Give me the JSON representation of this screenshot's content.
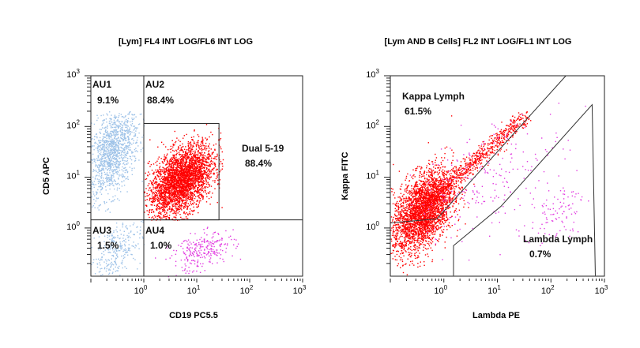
{
  "chart_data": [
    {
      "type": "scatter",
      "title": "[Lym] FL4 INT LOG/FL6 INT LOG",
      "xlabel": "CD19 PC5.5",
      "ylabel": "CD5 APC",
      "xscale": "log",
      "yscale": "log",
      "xlim_log10": [
        -1,
        3
      ],
      "ylim_log10": [
        -0.95,
        3
      ],
      "x_tick_labels": [
        {
          "base": "10",
          "exp": "0"
        },
        {
          "base": "10",
          "exp": "1"
        },
        {
          "base": "10",
          "exp": "2"
        },
        {
          "base": "10",
          "exp": "3"
        }
      ],
      "y_tick_labels": [
        {
          "base": "10",
          "exp": "0"
        },
        {
          "base": "10",
          "exp": "1"
        },
        {
          "base": "10",
          "exp": "2"
        },
        {
          "base": "10",
          "exp": "3"
        }
      ],
      "quadrant_split_log10": {
        "x": 0,
        "y": 0.16
      },
      "regions": [
        {
          "name": "AU1",
          "value": "9.1%"
        },
        {
          "name": "AU2",
          "value": "88.4%"
        },
        {
          "name": "AU3",
          "value": "1.5%"
        },
        {
          "name": "AU4",
          "value": "1.0%"
        },
        {
          "name": "Dual 5-19",
          "value": "88.4%",
          "gate_log10": {
            "x": [
              0,
              1.42
            ],
            "y": [
              0.16,
              2.06
            ]
          }
        }
      ],
      "populations": [
        {
          "color": "#9fc3e8",
          "center_log10": [
            -0.6,
            1.5
          ],
          "spread_log10": [
            0.25,
            0.45
          ],
          "count": 1300,
          "clip_x": [
            -1,
            0
          ],
          "clip_y": [
            0.16,
            2.3
          ]
        },
        {
          "color": "#9fc3e8",
          "center_log10": [
            -0.55,
            -0.45
          ],
          "spread_log10": [
            0.25,
            0.3
          ],
          "count": 300,
          "clip_x": [
            -1,
            0
          ],
          "clip_y": [
            -0.95,
            0.16
          ]
        },
        {
          "color": "#ff0000",
          "center_log10": [
            0.7,
            0.95
          ],
          "spread_log10": [
            0.3,
            0.35
          ],
          "count": 3200,
          "clip_x": [
            0,
            1.5
          ],
          "clip_y": [
            0.16,
            2.1
          ]
        },
        {
          "color": "#e23ce0",
          "center_log10": [
            1.1,
            -0.45
          ],
          "spread_log10": [
            0.3,
            0.2
          ],
          "count": 260,
          "clip_x": [
            0,
            2
          ],
          "clip_y": [
            -0.95,
            0.16
          ]
        }
      ]
    },
    {
      "type": "scatter",
      "title": "[Lym AND B Cells] FL2 INT LOG/FL1 INT LOG",
      "xlabel": "Lambda PE",
      "ylabel": "Kappa FITC",
      "xscale": "log",
      "yscale": "log",
      "xlim_log10": [
        -1,
        3
      ],
      "ylim_log10": [
        -0.95,
        3
      ],
      "x_tick_labels": [
        {
          "base": "10",
          "exp": "0"
        },
        {
          "base": "10",
          "exp": "1"
        },
        {
          "base": "10",
          "exp": "2"
        },
        {
          "base": "10",
          "exp": "3"
        }
      ],
      "y_tick_labels": [
        {
          "base": "10",
          "exp": "0"
        },
        {
          "base": "10",
          "exp": "1"
        },
        {
          "base": "10",
          "exp": "2"
        },
        {
          "base": "10",
          "exp": "3"
        }
      ],
      "regions": [
        {
          "name": "Kappa Lymph",
          "value": "61.5%",
          "gate_log10": [
            [
              -1,
              0.1
            ],
            [
              -0.13,
              0.18
            ],
            [
              2.28,
              3
            ]
          ]
        },
        {
          "name": "Lambda Lymph",
          "value": "0.7%",
          "gate_log10": [
            [
              0.18,
              -0.94
            ],
            [
              0.18,
              -0.35
            ],
            [
              1.07,
              0.43
            ],
            [
              2.77,
              2.43
            ],
            [
              2.83,
              -0.94
            ]
          ]
        }
      ],
      "populations": [
        {
          "color": "#ff0000",
          "center_log10": [
            -0.4,
            0.35
          ],
          "spread_log10": [
            0.28,
            0.4
          ],
          "count": 3000,
          "clip_x": [
            -1,
            3
          ],
          "clip_y": [
            -0.95,
            3
          ]
        },
        {
          "color": "#ff0000",
          "diagonal_log10": [
            [
              -0.2,
              0.6
            ],
            [
              1.5,
              2.2
            ]
          ],
          "spread_log10": [
            0.08,
            0.08
          ],
          "count": 700,
          "clip_x": [
            -1,
            3
          ],
          "clip_y": [
            -0.95,
            3
          ]
        },
        {
          "color": "#e23ce0",
          "center_log10": [
            0.9,
            1.0
          ],
          "spread_log10": [
            0.7,
            0.6
          ],
          "count": 220,
          "clip_x": [
            -1,
            2.8
          ],
          "clip_y": [
            -0.95,
            2.5
          ]
        },
        {
          "color": "#e23ce0",
          "center_log10": [
            2.1,
            0.3
          ],
          "spread_log10": [
            0.25,
            0.3
          ],
          "count": 90,
          "clip_x": [
            1,
            2.8
          ],
          "clip_y": [
            -0.95,
            1.5
          ]
        }
      ]
    }
  ]
}
